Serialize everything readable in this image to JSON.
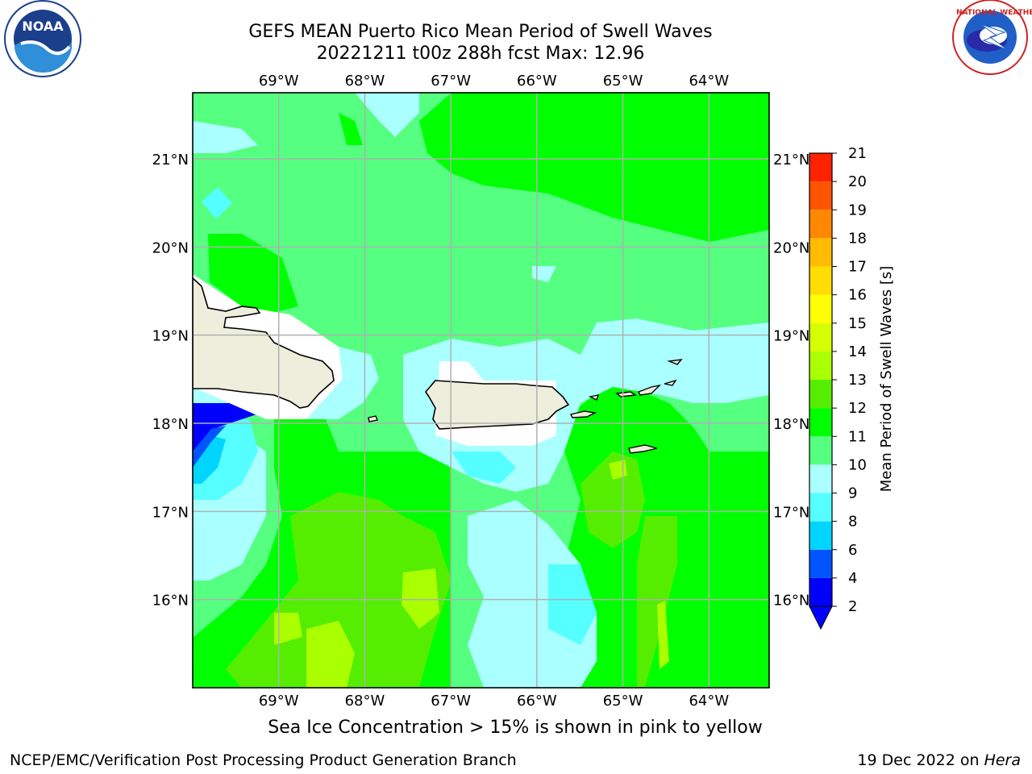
{
  "title": {
    "line1": "GEFS MEAN Puerto Rico Mean Period of Swell Waves",
    "line2": "20221211 t00z 288h fcst   Max: 12.96"
  },
  "subtitle": "Sea Ice Concentration > 15% is shown in pink to yellow",
  "footer": {
    "left": "NCEP/EMC/Verification Post Processing Product Generation Branch",
    "date": "19 Dec 2022 on",
    "machine": "Hera"
  },
  "logos": {
    "left": {
      "text": "NOAA",
      "ring_text": "NATIONAL OCEANIC AND ATMOSPHERIC ADMINISTRATION · U.S. DEPARTMENT OF COMMERCE"
    },
    "right": {
      "ring_text": "NATIONAL WEATHER SERVICE"
    }
  },
  "map": {
    "lon_labels": [
      "69°W",
      "68°W",
      "67°W",
      "66°W",
      "65°W",
      "64°W"
    ],
    "lat_labels": [
      "21°N",
      "20°N",
      "19°N",
      "18°N",
      "17°N",
      "16°N"
    ],
    "lon_range": [
      -70.0,
      -63.3
    ],
    "lat_range": [
      15.0,
      21.75
    ],
    "grid": true
  },
  "colorbar": {
    "label": "Mean Period of Swell Waves [s]",
    "ticks": [
      "2",
      "4",
      "6",
      "8",
      "9",
      "10",
      "11",
      "12",
      "13",
      "14",
      "15",
      "16",
      "17",
      "18",
      "19",
      "20",
      "21"
    ],
    "colors": [
      "#0000ff",
      "#0055ff",
      "#00d5ff",
      "#55ffff",
      "#aaffff",
      "#55ff80",
      "#00ff00",
      "#55ee00",
      "#aaff00",
      "#d5ff00",
      "#ffff00",
      "#ffdd00",
      "#ffbb00",
      "#ff8800",
      "#ff5500",
      "#ff2200"
    ],
    "under_color": "#0000ff"
  }
}
